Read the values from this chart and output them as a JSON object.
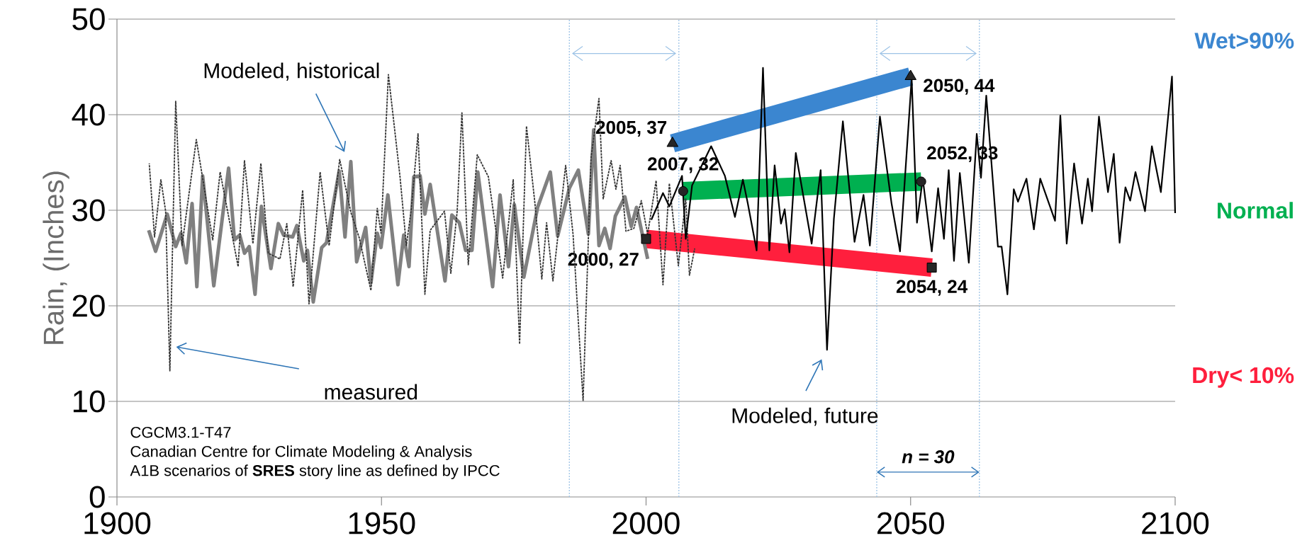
{
  "chart_data": {
    "type": "line",
    "ylabel": "Rain, (Inches)",
    "xlim": [
      1900,
      2100
    ],
    "xticks": [
      1900,
      1950,
      2000,
      2050,
      2100
    ],
    "ylim": [
      0,
      50
    ],
    "yticks": [
      0,
      10,
      20,
      30,
      40,
      50
    ],
    "grid": "y",
    "series": [
      {
        "color": "#808080",
        "line_style": "solid",
        "marker": "none",
        "x": [
          1906.0,
          1907.3,
          1909.5,
          1911.1,
          1912.1,
          1913.1,
          1914.2,
          1915.1,
          1916.2,
          1918.3,
          1921.1,
          1922.2,
          1923.2,
          1924.1,
          1925.0,
          1926.1,
          1927.3,
          1929.1,
          1930.5,
          1931.5,
          1933.2,
          1934.0,
          1935.3,
          1936.0,
          1937.1,
          1938.7,
          1939.6,
          1942.0,
          1943.1,
          1944.2,
          1945.3,
          1947.0,
          1948.0,
          1949.2,
          1949.9,
          1951.2,
          1953.1,
          1954.2,
          1955.2,
          1956.1,
          1957.3,
          1958.2,
          1959.2,
          1962.0,
          1963.3,
          1964.7,
          1965.9,
          1967.1,
          1968.2,
          1971.0,
          1972.4,
          1974.0,
          1975.1,
          1976.9,
          1979.5,
          1981.9,
          1983.3,
          1985.5,
          1987.2,
          1989.1,
          1990.1,
          1991.1,
          1992.2,
          1993.2,
          1994.2,
          1996.0,
          1997.2,
          1998.2,
          2000.3
        ],
        "values": [
          27.9,
          25.7,
          29.6,
          26.2,
          27.6,
          24.5,
          30.7,
          22.0,
          33.6,
          22.1,
          34.4,
          26.9,
          27.4,
          25.5,
          26.2,
          21.2,
          30.4,
          23.9,
          28.6,
          27.4,
          27.2,
          28.4,
          24.7,
          25.8,
          20.4,
          26.1,
          26.6,
          34.1,
          27.2,
          35.1,
          24.6,
          28.2,
          22.4,
          27.6,
          26.1,
          31.6,
          22.2,
          27.4,
          24.1,
          33.5,
          33.6,
          29.6,
          32.7,
          22.6,
          29.5,
          28.7,
          25.8,
          25.8,
          34.0,
          22.0,
          31.6,
          24.1,
          30.6,
          23.0,
          30.3,
          34.0,
          27.3,
          32.3,
          34.2,
          27.5,
          38.4,
          26.3,
          28.1,
          26.0,
          29.4,
          31.4,
          28.3,
          30.3,
          24.9
        ]
      },
      {
        "color": "#333333",
        "line_style": "dashed",
        "marker": "none",
        "x": [
          1906.1,
          1907.1,
          1908.3,
          1909.2,
          1910.0,
          1911.1,
          1912.3,
          1915.0,
          1918.1,
          1919.5,
          1922.9,
          1924.1,
          1925.7,
          1927.2,
          1928.6,
          1930.8,
          1932.1,
          1933.3,
          1935.1,
          1936.3,
          1938.4,
          1940.1,
          1942.1,
          1944.2,
          1945.8,
          1948.0,
          1949.2,
          1949.9,
          1951.3,
          1953.5,
          1954.7,
          1955.6,
          1956.9,
          1958.2,
          1959.2,
          1961.9,
          1963.1,
          1964.3,
          1965.2,
          1966.4,
          1968.1,
          1970.2,
          1972.9,
          1974.9,
          1976.1,
          1977.4,
          1979.0,
          1980.3,
          1981.2,
          1982.4,
          1984.8,
          1986.2,
          1988.1,
          1989.6,
          1991.1,
          1991.9,
          1993.4,
          1994.3,
          1995.1,
          1996.2,
          1997.7,
          1999.1,
          2000.3,
          2001.9,
          2003.2,
          2004.4,
          2006.1,
          2007.5,
          2008.2,
          2009.2
        ],
        "values": [
          34.9,
          27.2,
          33.2,
          29.9,
          13.2,
          41.4,
          26.3,
          37.4,
          26.9,
          34.0,
          24.1,
          35.2,
          26.5,
          34.9,
          25.5,
          24.9,
          28.6,
          22.0,
          32.1,
          20.2,
          34.0,
          26.3,
          35.3,
          29.8,
          27.1,
          21.6,
          30.2,
          27.6,
          44.2,
          33.5,
          26.3,
          30.0,
          38.0,
          21.2,
          27.9,
          29.9,
          23.4,
          29.9,
          40.2,
          24.3,
          35.8,
          33.5,
          22.9,
          33.2,
          16.0,
          38.8,
          30.7,
          22.8,
          28.7,
          22.6,
          34.7,
          27.5,
          10.1,
          35.5,
          41.7,
          31.2,
          35.2,
          32.2,
          34.7,
          27.8,
          28.1,
          31.0,
          27.5,
          33.1,
          22.2,
          32.8,
          24.2,
          31.2,
          23.2,
          26.0
        ]
      },
      {
        "color": "#000000",
        "line_style": "solid",
        "marker": "none",
        "x": [
          2001.0,
          2003.2,
          2004.4,
          2006.8,
          2007.5,
          2008.7,
          2012.3,
          2014.9,
          2016.8,
          2018.3,
          2019.2,
          2020.9,
          2022.1,
          2023.3,
          2024.3,
          2025.5,
          2026.2,
          2027.1,
          2028.3,
          2031.3,
          2033.0,
          2034.2,
          2035.5,
          2037.2,
          2039.4,
          2041.1,
          2042.3,
          2044.2,
          2046.4,
          2048.0,
          2050.2,
          2051.2,
          2052.3,
          2054.0,
          2055.2,
          2056.3,
          2057.2,
          2058.2,
          2059.3,
          2061.0,
          2062.5,
          2063.3,
          2064.3,
          2066.5,
          2067.2,
          2068.3,
          2069.5,
          2070.3,
          2071.9,
          2073.3,
          2074.5,
          2077.3,
          2078.3,
          2079.5,
          2080.9,
          2082.4,
          2083.5,
          2084.3,
          2085.6,
          2087.3,
          2088.4,
          2089.5,
          2090.6,
          2091.5,
          2092.5,
          2094.3,
          2095.6,
          2097.3,
          2099.4,
          2100.0
        ],
        "values": [
          29.0,
          31.8,
          30.4,
          33.6,
          27.0,
          32.6,
          36.7,
          33.6,
          29.3,
          33.2,
          30.8,
          25.8,
          44.9,
          25.8,
          34.7,
          28.6,
          30.1,
          25.6,
          36.0,
          26.5,
          34.2,
          15.4,
          29.1,
          39.3,
          26.7,
          31.6,
          26.3,
          39.8,
          30.7,
          25.7,
          43.8,
          28.7,
          33.3,
          25.7,
          32.3,
          27.0,
          34.2,
          24.7,
          33.9,
          24.5,
          38.0,
          33.4,
          42.0,
          26.2,
          26.2,
          21.2,
          32.2,
          30.9,
          33.3,
          28.0,
          33.3,
          28.9,
          39.9,
          26.5,
          34.9,
          28.6,
          33.3,
          29.9,
          39.8,
          31.9,
          35.9,
          26.6,
          32.4,
          31.0,
          34.0,
          29.9,
          36.7,
          31.9,
          44.0,
          29.7
        ]
      },
      {
        "name": "Wet>90%",
        "color": "#3b86d0",
        "line_style": "solid",
        "marker": "triangle",
        "x": [
          2005,
          2050
        ],
        "values": [
          37,
          44
        ],
        "value_labels": [
          "2005, 37",
          "2050, 44"
        ]
      },
      {
        "name": "Normal",
        "color": "#00b050",
        "line_style": "solid",
        "marker": "circle",
        "x": [
          2007,
          2052
        ],
        "values": [
          32,
          33
        ],
        "value_labels": [
          "2007, 32",
          "2052, 33"
        ]
      },
      {
        "name": "Dry< 10%",
        "color": "#ff1f3d",
        "line_style": "solid",
        "marker": "square",
        "x": [
          2000,
          2054
        ],
        "values": [
          27,
          24
        ],
        "value_labels": [
          "2000, 27",
          "2054, 24"
        ]
      }
    ],
    "ref_lines": [
      {
        "axis": "x",
        "value": 1985.5,
        "color": "#9dc3e6",
        "line_style": "dotted"
      },
      {
        "axis": "x",
        "value": 2006.2,
        "color": "#9dc3e6",
        "line_style": "dotted"
      },
      {
        "axis": "x",
        "value": 2043.6,
        "color": "#9dc3e6",
        "line_style": "dotted"
      },
      {
        "axis": "x",
        "value": 2063,
        "color": "#9dc3e6",
        "line_style": "dotted"
      }
    ],
    "annotations": [
      "Modeled, historical",
      "measured",
      "Modeled, future",
      "n = 30",
      "CGCM3.1-T47",
      "Canadian Centre for Climate Modeling & Analysis",
      "A1B scenarios of **SRES** story line as defined by IPCC"
    ]
  }
}
